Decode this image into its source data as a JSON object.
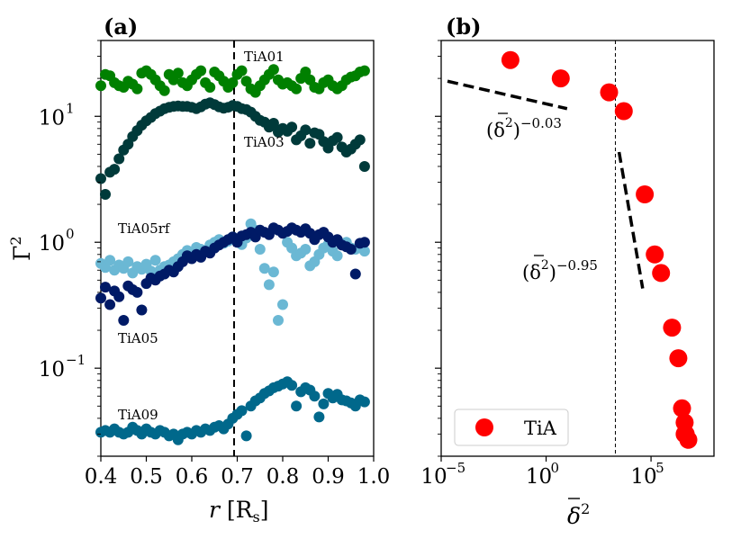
{
  "chart_data": [
    {
      "type": "scatter",
      "panel_label": "(a)",
      "xlabel": "r [R_s]",
      "xlabel_var": "r",
      "xlabel_unit": "[R",
      "xlabel_sub": "s",
      "xlabel_close": "]",
      "ylabel_base": "Γ",
      "ylabel_exp": "2",
      "yscale": "log",
      "xlim": [
        0.4,
        1.0
      ],
      "ylim": [
        0.02,
        40
      ],
      "x_ticks": [
        "0.4",
        "0.5",
        "0.6",
        "0.7",
        "0.8",
        "0.9",
        "1.0"
      ],
      "y_ticks": [
        {
          "base": "10",
          "exp": "−1"
        },
        {
          "base": "10",
          "exp": "0"
        },
        {
          "base": "10",
          "exp": "1"
        }
      ],
      "vline_x": 0.693,
      "series": [
        {
          "name": "TiA01",
          "color": "#008000",
          "x": [
            0.4,
            0.41,
            0.42,
            0.43,
            0.44,
            0.45,
            0.46,
            0.47,
            0.48,
            0.49,
            0.5,
            0.51,
            0.52,
            0.53,
            0.54,
            0.55,
            0.56,
            0.57,
            0.58,
            0.59,
            0.6,
            0.61,
            0.62,
            0.63,
            0.64,
            0.65,
            0.66,
            0.67,
            0.68,
            0.69,
            0.7,
            0.71,
            0.72,
            0.73,
            0.74,
            0.75,
            0.76,
            0.77,
            0.78,
            0.79,
            0.8,
            0.81,
            0.82,
            0.83,
            0.84,
            0.85,
            0.86,
            0.87,
            0.88,
            0.89,
            0.9,
            0.91,
            0.92,
            0.93,
            0.94,
            0.95,
            0.96,
            0.97,
            0.98
          ],
          "y": [
            17.5,
            21.5,
            21.0,
            18.5,
            17.5,
            17.0,
            19.0,
            18.0,
            16.5,
            22.0,
            23.0,
            21.5,
            19.5,
            17.5,
            16.0,
            21.5,
            19.5,
            22.0,
            18.5,
            17.5,
            19.5,
            21.5,
            23.0,
            18.5,
            17.0,
            22.5,
            21.0,
            19.0,
            17.0,
            18.5,
            21.5,
            23.0,
            19.0,
            16.5,
            15.5,
            17.5,
            19.5,
            21.5,
            23.5,
            19.5,
            18.0,
            18.5,
            17.5,
            16.5,
            20.0,
            22.5,
            19.5,
            17.0,
            16.5,
            18.5,
            19.5,
            17.5,
            16.5,
            17.5,
            19.5,
            20.5,
            21.0,
            22.5,
            23.0
          ]
        },
        {
          "name": "TiA03",
          "color": "#003a3a",
          "x": [
            0.4,
            0.41,
            0.42,
            0.43,
            0.44,
            0.45,
            0.46,
            0.47,
            0.48,
            0.49,
            0.5,
            0.51,
            0.52,
            0.53,
            0.54,
            0.55,
            0.56,
            0.57,
            0.58,
            0.59,
            0.6,
            0.61,
            0.62,
            0.63,
            0.64,
            0.65,
            0.66,
            0.67,
            0.68,
            0.69,
            0.7,
            0.71,
            0.72,
            0.73,
            0.74,
            0.75,
            0.76,
            0.77,
            0.78,
            0.79,
            0.8,
            0.81,
            0.82,
            0.83,
            0.84,
            0.85,
            0.86,
            0.87,
            0.88,
            0.89,
            0.9,
            0.91,
            0.92,
            0.93,
            0.94,
            0.95,
            0.96,
            0.97,
            0.98
          ],
          "y": [
            3.2,
            2.4,
            3.6,
            3.8,
            4.6,
            5.4,
            6.0,
            6.9,
            7.7,
            8.5,
            9.2,
            9.8,
            10.5,
            11.0,
            11.5,
            11.8,
            12.0,
            12.1,
            12.0,
            12.0,
            11.8,
            11.5,
            11.9,
            12.5,
            12.8,
            12.4,
            11.9,
            11.6,
            11.8,
            12.2,
            12.0,
            11.5,
            11.3,
            10.8,
            10.0,
            9.3,
            9.0,
            8.2,
            8.8,
            7.5,
            8.0,
            7.6,
            8.2,
            6.5,
            7.0,
            7.8,
            6.1,
            7.4,
            7.2,
            6.3,
            5.6,
            6.4,
            6.8,
            5.7,
            5.2,
            5.5,
            6.0,
            6.5,
            4.0
          ]
        },
        {
          "name": "TiA05rf",
          "color": "#6bb8d4",
          "x": [
            0.4,
            0.41,
            0.42,
            0.43,
            0.44,
            0.45,
            0.46,
            0.47,
            0.48,
            0.49,
            0.5,
            0.51,
            0.52,
            0.53,
            0.54,
            0.55,
            0.56,
            0.57,
            0.58,
            0.59,
            0.6,
            0.61,
            0.62,
            0.63,
            0.64,
            0.65,
            0.66,
            0.67,
            0.68,
            0.69,
            0.7,
            0.71,
            0.72,
            0.73,
            0.74,
            0.75,
            0.76,
            0.77,
            0.78,
            0.79,
            0.8,
            0.81,
            0.82,
            0.83,
            0.84,
            0.85,
            0.86,
            0.87,
            0.88,
            0.89,
            0.9,
            0.91,
            0.92,
            0.93,
            0.94,
            0.95,
            0.96,
            0.97,
            0.98
          ],
          "y": [
            0.68,
            0.63,
            0.72,
            0.6,
            0.66,
            0.62,
            0.7,
            0.57,
            0.64,
            0.61,
            0.67,
            0.59,
            0.72,
            0.6,
            0.64,
            0.66,
            0.7,
            0.74,
            0.8,
            0.86,
            0.82,
            0.91,
            0.88,
            0.84,
            0.95,
            1.0,
            1.05,
            0.98,
            1.02,
            1.1,
            1.04,
            0.96,
            1.08,
            1.4,
            1.25,
            0.88,
            0.62,
            0.46,
            0.58,
            0.24,
            0.32,
            1.0,
            0.9,
            0.78,
            0.82,
            0.88,
            0.65,
            0.7,
            0.8,
            0.9,
            0.96,
            0.85,
            0.78,
            0.95,
            1.0,
            0.9,
            0.88,
            0.92,
            0.85
          ]
        },
        {
          "name": "TiA05",
          "color": "#001a66",
          "x": [
            0.4,
            0.41,
            0.42,
            0.43,
            0.44,
            0.45,
            0.46,
            0.47,
            0.48,
            0.49,
            0.5,
            0.51,
            0.52,
            0.53,
            0.54,
            0.55,
            0.56,
            0.57,
            0.58,
            0.59,
            0.6,
            0.61,
            0.62,
            0.63,
            0.64,
            0.65,
            0.66,
            0.67,
            0.68,
            0.69,
            0.7,
            0.71,
            0.72,
            0.73,
            0.74,
            0.75,
            0.76,
            0.77,
            0.78,
            0.79,
            0.8,
            0.81,
            0.82,
            0.83,
            0.84,
            0.85,
            0.86,
            0.87,
            0.88,
            0.89,
            0.9,
            0.91,
            0.92,
            0.93,
            0.94,
            0.95,
            0.96,
            0.97,
            0.98
          ],
          "y": [
            0.36,
            0.44,
            0.32,
            0.41,
            0.37,
            0.24,
            0.45,
            0.42,
            0.4,
            0.29,
            0.47,
            0.52,
            0.5,
            0.54,
            0.56,
            0.6,
            0.58,
            0.64,
            0.7,
            0.78,
            0.74,
            0.8,
            0.76,
            0.85,
            0.82,
            0.9,
            0.95,
            1.0,
            1.05,
            1.1,
            1.0,
            1.12,
            1.15,
            1.2,
            1.1,
            1.25,
            1.2,
            1.15,
            1.3,
            1.25,
            1.18,
            1.22,
            1.3,
            1.25,
            1.2,
            1.28,
            1.18,
            1.05,
            1.15,
            1.2,
            1.1,
            1.0,
            1.05,
            0.95,
            0.92,
            0.88,
            0.56,
            0.98,
            1.0
          ]
        },
        {
          "name": "TiA09",
          "color": "#00688b",
          "x": [
            0.4,
            0.41,
            0.42,
            0.43,
            0.44,
            0.45,
            0.46,
            0.47,
            0.48,
            0.49,
            0.5,
            0.51,
            0.52,
            0.53,
            0.54,
            0.55,
            0.56,
            0.57,
            0.58,
            0.59,
            0.6,
            0.61,
            0.62,
            0.63,
            0.64,
            0.65,
            0.66,
            0.67,
            0.68,
            0.69,
            0.7,
            0.71,
            0.72,
            0.73,
            0.74,
            0.75,
            0.76,
            0.77,
            0.78,
            0.79,
            0.8,
            0.81,
            0.82,
            0.83,
            0.84,
            0.85,
            0.86,
            0.87,
            0.88,
            0.89,
            0.9,
            0.91,
            0.92,
            0.93,
            0.94,
            0.95,
            0.96,
            0.97,
            0.98
          ],
          "y": [
            0.031,
            0.032,
            0.031,
            0.033,
            0.031,
            0.03,
            0.031,
            0.034,
            0.032,
            0.03,
            0.033,
            0.031,
            0.03,
            0.032,
            0.031,
            0.029,
            0.03,
            0.027,
            0.03,
            0.031,
            0.03,
            0.032,
            0.031,
            0.033,
            0.032,
            0.034,
            0.035,
            0.033,
            0.036,
            0.04,
            0.043,
            0.046,
            0.029,
            0.05,
            0.055,
            0.058,
            0.063,
            0.066,
            0.07,
            0.072,
            0.075,
            0.078,
            0.073,
            0.05,
            0.065,
            0.07,
            0.067,
            0.06,
            0.041,
            0.052,
            0.063,
            0.058,
            0.062,
            0.056,
            0.055,
            0.053,
            0.05,
            0.056,
            0.054
          ]
        }
      ],
      "annotations": [
        "TiA01",
        "TiA03",
        "TiA05rf",
        "TiA05",
        "TiA09"
      ]
    },
    {
      "type": "scatter",
      "panel_label": "(b)",
      "xlabel_base": "δ",
      "xlabel_exp": "2",
      "xscale": "log",
      "yscale": "log",
      "xlim": [
        1e-05,
        100000000.0
      ],
      "ylim": [
        0.02,
        40
      ],
      "x_ticks": [
        {
          "base": "10",
          "exp": "−5"
        },
        {
          "base": "10",
          "exp": "0"
        },
        {
          "base": "10",
          "exp": "5"
        }
      ],
      "vline_x": 2000,
      "legend": {
        "label": "TiA",
        "position": "bottom-left"
      },
      "series": [
        {
          "name": "TiA",
          "color": "#ff0000",
          "x": [
            0.02,
            5,
            1000,
            5000,
            50000,
            150000,
            300000,
            1000000,
            2000000,
            3000000,
            4000000,
            4500000,
            4000000,
            6000000
          ],
          "y": [
            28,
            20,
            15.5,
            11,
            2.4,
            0.8,
            0.57,
            0.21,
            0.12,
            0.048,
            0.037,
            0.03,
            0.03,
            0.027
          ]
        }
      ],
      "fit_lines": [
        {
          "label_base": "(δ",
          "label_close": ")",
          "label_exp": "−0.03",
          "x": [
            2e-05,
            10
          ],
          "y": [
            19,
            11.5
          ]
        },
        {
          "label_base": "(δ",
          "label_close": ")",
          "label_exp": "−0.95",
          "x": [
            3000,
            40000
          ],
          "y": [
            5.2,
            0.43
          ]
        }
      ]
    }
  ]
}
